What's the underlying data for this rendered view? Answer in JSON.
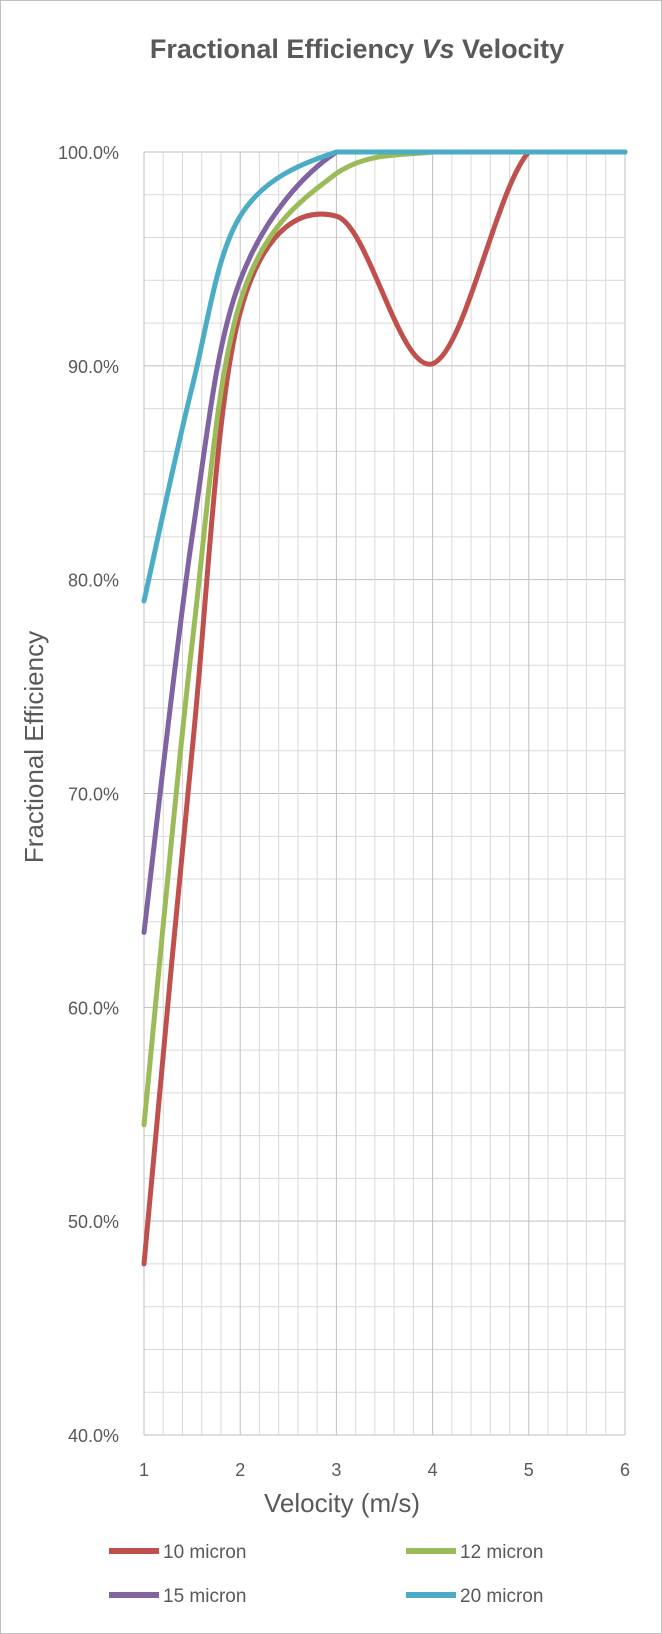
{
  "chart_data": {
    "type": "line",
    "title_main": "Fractional Efficiency ",
    "title_italic": "Vs",
    "title_end": " Velocity",
    "xlabel": "Velocity (m/s)",
    "ylabel": "Fractional Efficiency",
    "xlim": [
      1,
      6
    ],
    "ylim": [
      0.4,
      1.0
    ],
    "xticks": [
      "1",
      "2",
      "3",
      "4",
      "5",
      "6"
    ],
    "yticks": [
      "40.0%",
      "50.0%",
      "60.0%",
      "70.0%",
      "80.0%",
      "90.0%",
      "100.0%"
    ],
    "grid": true,
    "legend_position": "bottom",
    "series": [
      {
        "name": "10 micron",
        "color": "#c0504d",
        "points": [
          [
            1.0,
            0.48
          ],
          [
            1.5,
            0.72
          ],
          [
            2.0,
            0.925
          ],
          [
            3.0,
            0.97
          ],
          [
            4.0,
            0.901
          ],
          [
            5.0,
            1.0
          ],
          [
            6.0,
            1.0
          ]
        ]
      },
      {
        "name": "12 micron",
        "color": "#9bbb59",
        "points": [
          [
            1.0,
            0.545
          ],
          [
            1.5,
            0.77
          ],
          [
            2.0,
            0.93
          ],
          [
            3.0,
            0.99
          ],
          [
            4.0,
            1.0
          ],
          [
            5.0,
            1.0
          ],
          [
            6.0,
            1.0
          ]
        ]
      },
      {
        "name": "15 micron",
        "color": "#8064a2",
        "points": [
          [
            1.0,
            0.635
          ],
          [
            1.5,
            0.82
          ],
          [
            2.0,
            0.94
          ],
          [
            3.0,
            1.0
          ],
          [
            4.0,
            1.0
          ],
          [
            5.0,
            1.0
          ],
          [
            6.0,
            1.0
          ]
        ]
      },
      {
        "name": "20 micron",
        "color": "#4bacc6",
        "points": [
          [
            1.0,
            0.79
          ],
          [
            1.5,
            0.89
          ],
          [
            2.0,
            0.97
          ],
          [
            3.0,
            1.0
          ],
          [
            4.0,
            1.0
          ],
          [
            5.0,
            1.0
          ],
          [
            6.0,
            1.0
          ]
        ]
      }
    ]
  }
}
